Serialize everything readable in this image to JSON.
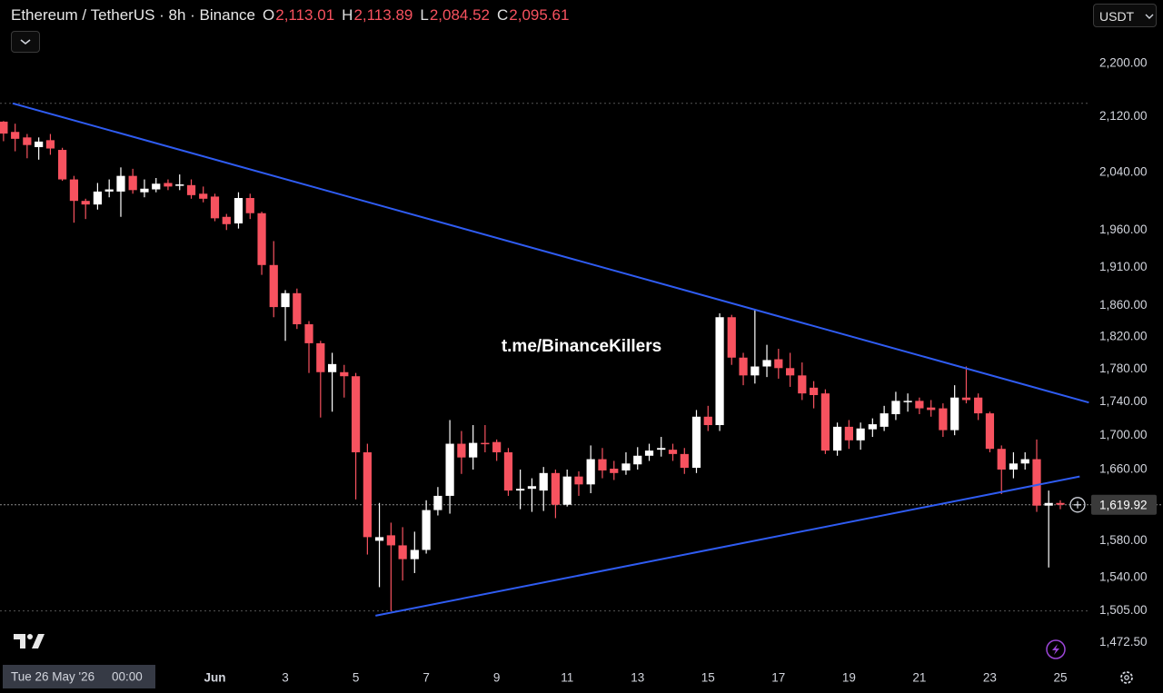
{
  "chart_data": {
    "type": "candlestick",
    "title": "Ethereum / TetherUS · 8h · Binance",
    "ohlc_legend": [
      {
        "key": "O",
        "value": "2,113.01"
      },
      {
        "key": "H",
        "value": "2,113.89"
      },
      {
        "key": "L",
        "value": "2,084.52"
      },
      {
        "key": "C",
        "value": "2,095.61"
      }
    ],
    "currency": "USDT",
    "watermark": "t.me/BinanceKillers",
    "crosshair_date": "Tue 26 May '26",
    "crosshair_time": "00:00",
    "x": [
      -5,
      -4.67,
      -4.33,
      -4,
      -3.67,
      -3.33,
      -3,
      -2.67,
      -2.33,
      -2,
      -1.67,
      -1.33,
      -1,
      -0.67,
      -0.33,
      0,
      0.33,
      0.67,
      1,
      1.33,
      1.67,
      2,
      2.33,
      2.67,
      3,
      3.33,
      3.67,
      4,
      4.33,
      4.67,
      5,
      5.33,
      5.67,
      6,
      6.33,
      6.67,
      7,
      7.33,
      7.67,
      8,
      8.33,
      8.67,
      9,
      9.33,
      9.67,
      10,
      10.33,
      10.67,
      11,
      11.33,
      11.67,
      12,
      12.33,
      12.67,
      13,
      13.33,
      13.67,
      14,
      14.33,
      14.67,
      15,
      15.33,
      15.67,
      16,
      16.33,
      16.67,
      17,
      17.33,
      17.67,
      18,
      18.33,
      18.67,
      19,
      19.33,
      19.67,
      20,
      20.33,
      20.67,
      21,
      21.33,
      21.67,
      22,
      22.33,
      22.67,
      23,
      23.33,
      23.67,
      24,
      24.33,
      24.67,
      25
    ],
    "open": [
      2113.01,
      2098,
      2090,
      2076,
      2086,
      2072,
      2030,
      2000,
      1995,
      2013,
      2013,
      2035,
      2012,
      2016,
      2025,
      2021,
      2022,
      2010,
      2006,
      1978,
      1969,
      2004,
      1983,
      1913,
      1858,
      1876,
      1836,
      1812,
      1776,
      1776,
      1771,
      1680,
      1580,
      1586,
      1575,
      1560,
      1570,
      1614,
      1630,
      1690,
      1674,
      1691,
      1692,
      1680,
      1636,
      1638,
      1636,
      1656,
      1620,
      1652,
      1643,
      1672,
      1661,
      1659,
      1666,
      1676,
      1683,
      1683,
      1678,
      1662,
      1722,
      1712,
      1845,
      1794,
      1772,
      1783,
      1792,
      1781,
      1772,
      1757,
      1750,
      1682,
      1710,
      1694,
      1707,
      1710,
      1725,
      1740,
      1741,
      1733,
      1732,
      1706,
      1745,
      1745,
      1726,
      1684,
      1660,
      1667,
      1672,
      1619,
      1622
    ],
    "high": [
      2113.89,
      2110,
      2095,
      2090,
      2095,
      2075,
      2035,
      2003,
      2025,
      2030,
      2047,
      2045,
      2030,
      2032,
      2030,
      2037,
      2030,
      2020,
      2010,
      1982,
      2012,
      2010,
      1985,
      1945,
      1880,
      1882,
      1840,
      1815,
      1800,
      1785,
      1775,
      1690,
      1622,
      1600,
      1595,
      1590,
      1625,
      1640,
      1718,
      1705,
      1712,
      1712,
      1695,
      1685,
      1660,
      1650,
      1663,
      1660,
      1660,
      1658,
      1688,
      1685,
      1670,
      1680,
      1686,
      1690,
      1698,
      1690,
      1685,
      1730,
      1735,
      1850,
      1848,
      1800,
      1855,
      1810,
      1805,
      1800,
      1788,
      1765,
      1755,
      1715,
      1718,
      1715,
      1720,
      1735,
      1752,
      1750,
      1745,
      1742,
      1738,
      1760,
      1783,
      1750,
      1728,
      1688,
      1680,
      1680,
      1695,
      1636,
      1625
    ],
    "low": [
      2084.52,
      2070,
      2060,
      2058,
      2065,
      2028,
      1970,
      1975,
      1988,
      2005,
      1978,
      2010,
      2005,
      2012,
      2015,
      2015,
      2003,
      1998,
      1972,
      1960,
      1962,
      1975,
      1900,
      1845,
      1815,
      1830,
      1775,
      1721,
      1728,
      1745,
      1626,
      1565,
      1530,
      1505,
      1537,
      1545,
      1566,
      1608,
      1610,
      1655,
      1660,
      1680,
      1670,
      1630,
      1615,
      1612,
      1613,
      1605,
      1618,
      1630,
      1633,
      1650,
      1648,
      1654,
      1660,
      1670,
      1675,
      1670,
      1655,
      1656,
      1705,
      1705,
      1785,
      1760,
      1762,
      1770,
      1768,
      1758,
      1742,
      1732,
      1678,
      1676,
      1684,
      1683,
      1698,
      1705,
      1718,
      1728,
      1725,
      1722,
      1698,
      1700,
      1738,
      1718,
      1680,
      1632,
      1650,
      1660,
      1612,
      1551,
      1615
    ],
    "close": [
      2095.61,
      2088,
      2079,
      2084,
      2074,
      2030,
      2000,
      1995,
      2013,
      2016,
      2035,
      2015,
      2017,
      2024,
      2020,
      2023,
      2008,
      2003,
      1976,
      1968,
      2004,
      1983,
      1913,
      1858,
      1876,
      1836,
      1812,
      1776,
      1786,
      1771,
      1680,
      1584,
      1584,
      1575,
      1560,
      1570,
      1614,
      1630,
      1690,
      1674,
      1691,
      1690,
      1680,
      1636,
      1638,
      1641,
      1656,
      1620,
      1652,
      1643,
      1672,
      1659,
      1656,
      1667,
      1676,
      1682,
      1685,
      1678,
      1662,
      1722,
      1712,
      1845,
      1794,
      1772,
      1783,
      1791,
      1781,
      1772,
      1750,
      1748,
      1682,
      1710,
      1694,
      1708,
      1713,
      1726,
      1741,
      1741,
      1732,
      1730,
      1706,
      1745,
      1742,
      1726,
      1684,
      1660,
      1667,
      1672,
      1619,
      1622,
      1620
    ],
    "up_color": "#ffffff",
    "down_color": "#f7525f",
    "xlim": [
      -5.1,
      25.8
    ],
    "xticks": [
      {
        "value": 1,
        "label": "Jun"
      },
      3,
      5,
      7,
      9,
      11,
      13,
      15,
      17,
      19,
      21,
      23,
      25
    ],
    "ylim": [
      1447,
      2299
    ],
    "log_scale": true,
    "yticks": [
      {
        "value": 2200,
        "label": "2,200.00"
      },
      {
        "value": 2120,
        "label": "2,120.00"
      },
      {
        "value": 2040,
        "label": "2,040.00"
      },
      {
        "value": 1960,
        "label": "1,960.00"
      },
      {
        "value": 1910,
        "label": "1,910.00"
      },
      {
        "value": 1860,
        "label": "1,860.00"
      },
      {
        "value": 1820,
        "label": "1,820.00"
      },
      {
        "value": 1780,
        "label": "1,780.00"
      },
      {
        "value": 1740,
        "label": "1,740.00"
      },
      {
        "value": 1700,
        "label": "1,700.00"
      },
      {
        "value": 1660,
        "label": "1,660.00"
      },
      {
        "value": 1580,
        "label": "1,580.00"
      },
      {
        "value": 1540,
        "label": "1,540.00"
      },
      {
        "value": 1505,
        "label": "1,505.00"
      },
      {
        "value": 1472.5,
        "label": "1,472.50"
      }
    ],
    "grid": false,
    "last_price": {
      "value": 1619.92,
      "label": "1,619.92"
    },
    "levels": [
      2140,
      1505
    ],
    "trendlines": [
      {
        "color": "#2f5cf2",
        "x": [
          -4.74,
          25.81
        ],
        "y": [
          2140,
          1739
        ]
      },
      {
        "color": "#2f5cf2",
        "x": [
          5.56,
          25.55
        ],
        "y": [
          1500,
          1652
        ]
      }
    ]
  }
}
